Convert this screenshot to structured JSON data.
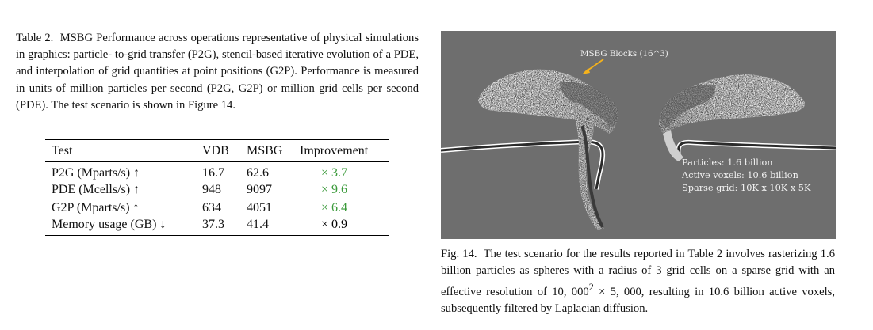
{
  "table_caption": {
    "label": "Table 2.",
    "text": "MSBG Performance across operations representative of physical simulations in graphics: particle- to-grid transfer (P2G), stencil-based iterative evolution of a PDE, and interpolation of grid quantities at point positions (G2P). Performance is measured in units of million particles per second (P2G, G2P) or million grid cells per second (PDE). The test scenario is shown in Figure 14."
  },
  "table": {
    "headers": [
      "Test",
      "VDB",
      "MSBG",
      "Improvement"
    ],
    "rows": [
      {
        "test": "P2G (Mparts/s) ↑",
        "vdb": "16.7",
        "msbg": "62.6",
        "improvement": "× 3.7",
        "highlight": "green"
      },
      {
        "test": "PDE (Mcells/s) ↑",
        "vdb": "948",
        "msbg": "9097",
        "improvement": "× 9.6",
        "highlight": "green"
      },
      {
        "test": "G2P (Mparts/s) ↑",
        "vdb": "634",
        "msbg": "4051",
        "improvement": "× 6.4",
        "highlight": "green"
      },
      {
        "test": "Memory usage (GB) ↓",
        "vdb": "37.3",
        "msbg": "41.4",
        "improvement": "× 0.9",
        "highlight": "black"
      }
    ]
  },
  "figure": {
    "annotation": "MSBG Blocks (16^3)",
    "stats": [
      "Particles: 1.6 billion",
      "Active voxels: 10.6 billion",
      "Sparse grid: 10K x 10K x 5K"
    ],
    "colors": {
      "background": "#6e6e6e",
      "arrow": "#f5b21c",
      "text": "#f2f2f2"
    }
  },
  "figure_caption": {
    "label": "Fig. 14.",
    "text_before_sup": "The test scenario for the results reported in Table 2 involves rasterizing 1.6 billion particles as spheres with a radius of 3 grid cells on a sparse grid with an effective resolution of 10, 000",
    "sup": "2",
    "text_after_sup": " × 5, 000, resulting in 10.6 billion active voxels, subsequently filtered by Laplacian diffusion."
  }
}
